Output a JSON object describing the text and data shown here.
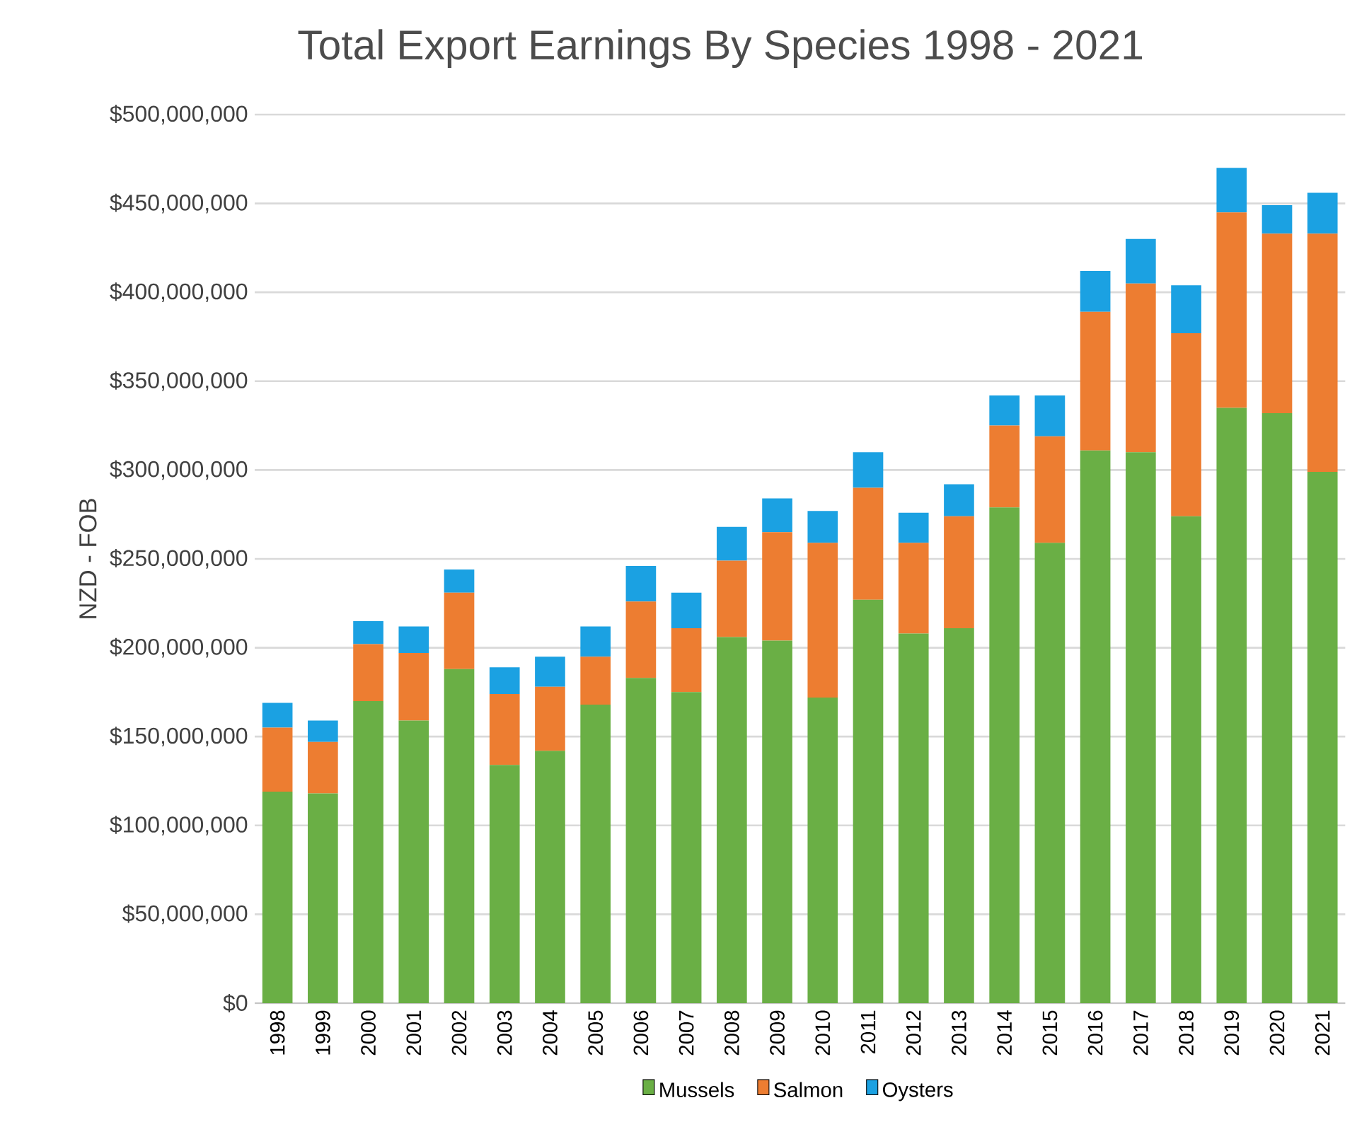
{
  "chart_data": {
    "type": "bar",
    "stacked": true,
    "title": "Total Export Earnings By Species 1998 - 2021",
    "ylabel": "NZD - FOB",
    "categories": [
      "1998",
      "1999",
      "2000",
      "2001",
      "2002",
      "2003",
      "2004",
      "2005",
      "2006",
      "2007",
      "2008",
      "2009",
      "2010",
      "2011",
      "2012",
      "2013",
      "2014",
      "2015",
      "2016",
      "2017",
      "2018",
      "2019",
      "2020",
      "2021"
    ],
    "series": [
      {
        "name": "Mussels",
        "color": "#6aaf45",
        "values": [
          119000000,
          118000000,
          170000000,
          159000000,
          188000000,
          134000000,
          142000000,
          168000000,
          183000000,
          175000000,
          206000000,
          204000000,
          172000000,
          227000000,
          208000000,
          211000000,
          279000000,
          259000000,
          311000000,
          310000000,
          274000000,
          335000000,
          332000000,
          299000000
        ]
      },
      {
        "name": "Salmon",
        "color": "#ed7d31",
        "values": [
          36000000,
          29000000,
          32000000,
          38000000,
          43000000,
          40000000,
          36000000,
          27000000,
          43000000,
          36000000,
          43000000,
          61000000,
          87000000,
          63000000,
          51000000,
          63000000,
          46000000,
          60000000,
          78000000,
          95000000,
          103000000,
          110000000,
          101000000,
          134000000
        ]
      },
      {
        "name": "Oysters",
        "color": "#1ba1e2",
        "values": [
          14000000,
          12000000,
          13000000,
          15000000,
          13000000,
          15000000,
          17000000,
          17000000,
          20000000,
          20000000,
          19000000,
          19000000,
          18000000,
          20000000,
          17000000,
          18000000,
          17000000,
          23000000,
          23000000,
          25000000,
          27000000,
          25000000,
          16000000,
          23000000
        ]
      }
    ],
    "ylim": [
      0,
      500000000
    ],
    "yticks": [
      {
        "value": 0,
        "label": "$0"
      },
      {
        "value": 50000000,
        "label": "$50,000,000"
      },
      {
        "value": 100000000,
        "label": "$100,000,000"
      },
      {
        "value": 150000000,
        "label": "$150,000,000"
      },
      {
        "value": 200000000,
        "label": "$200,000,000"
      },
      {
        "value": 250000000,
        "label": "$250,000,000"
      },
      {
        "value": 300000000,
        "label": "$300,000,000"
      },
      {
        "value": 350000000,
        "label": "$350,000,000"
      },
      {
        "value": 400000000,
        "label": "$400,000,000"
      },
      {
        "value": 450000000,
        "label": "$450,000,000"
      },
      {
        "value": 500000000,
        "label": "$500,000,000"
      }
    ],
    "grid": "y",
    "legend": "bottom"
  }
}
